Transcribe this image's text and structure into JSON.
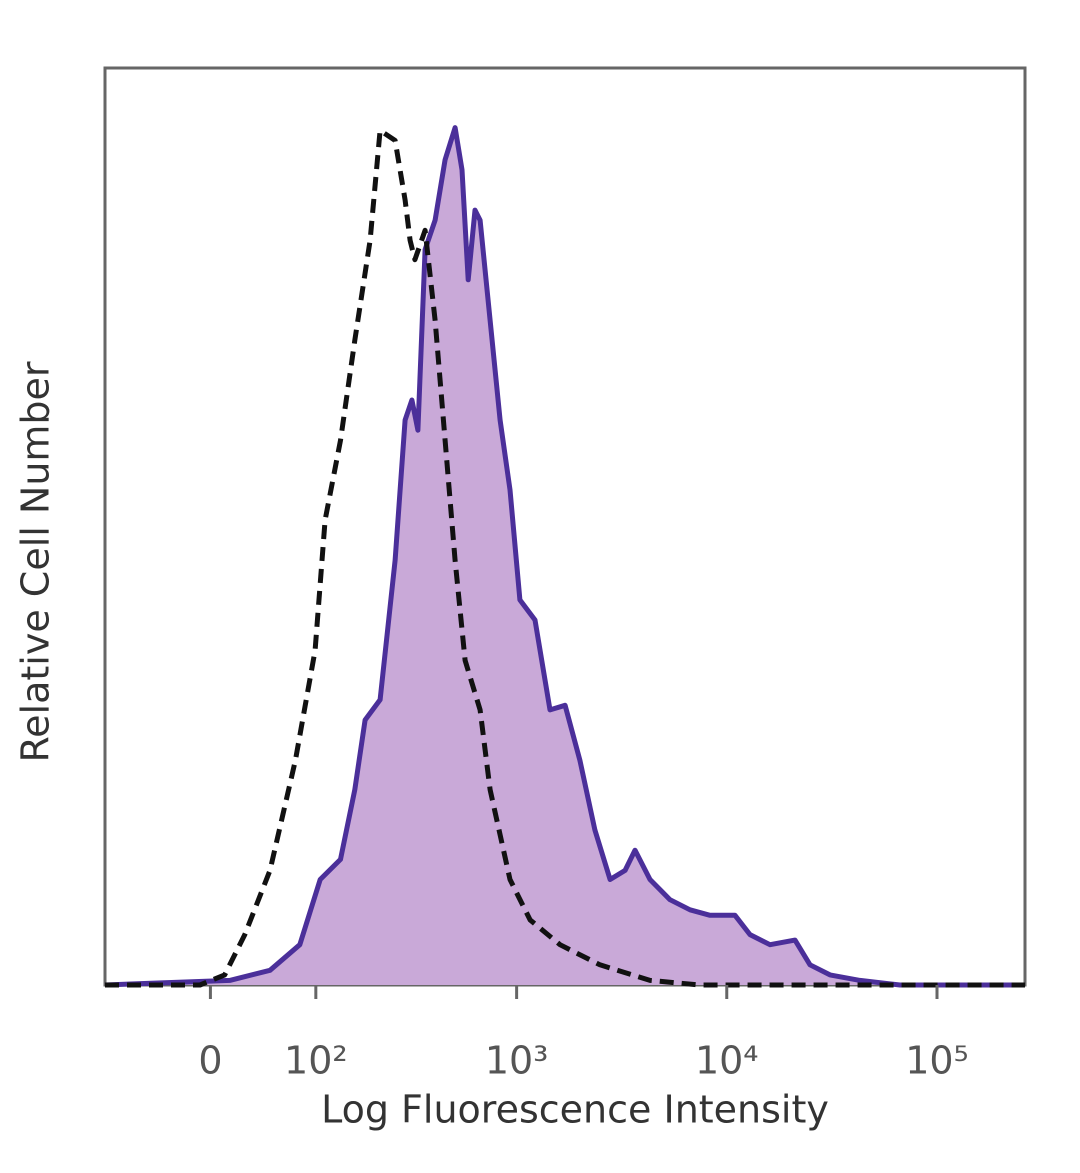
{
  "chart_data": {
    "type": "histogram-overlay",
    "xlabel": "Log Fluorescence Intensity",
    "ylabel": "Relative Cell Number",
    "xscale": "biexponential",
    "xlim": [
      -100,
      262144
    ],
    "ylim": [
      0,
      100
    ],
    "xticks": [
      0,
      {
        "value": 100,
        "label": "10²"
      },
      {
        "value": 1000,
        "label": "10³"
      },
      {
        "value": 10000,
        "label": "10⁴"
      },
      {
        "value": 100000,
        "label": "10⁵"
      }
    ],
    "series": [
      {
        "style": "filled",
        "color": "#4b2f9a",
        "fill": "#c9a9d8",
        "x": [
          -100,
          15,
          49,
          80,
          106,
          137,
          163,
          184,
          219,
          260,
          291,
          314,
          336,
          364,
          407,
          455,
          508,
          548,
          587,
          633,
          669,
          747,
          834,
          930,
          1037,
          1224,
          1442,
          1701,
          2002,
          2359,
          2786,
          3283,
          3661,
          4312,
          5369,
          6685,
          8323,
          10948,
          12894,
          16051,
          21105,
          24878,
          30961,
          43022,
          66640,
          262144
        ],
        "values": [
          0,
          0.5,
          1.6,
          4.4,
          11.5,
          13.7,
          21.3,
          28.9,
          31.1,
          46.3,
          61.6,
          63.8,
          60.5,
          80.2,
          83.4,
          90.0,
          93.5,
          88.9,
          76.9,
          84.5,
          83.4,
          72.5,
          61.6,
          54.0,
          42.0,
          39.8,
          30.0,
          30.5,
          24.5,
          16.9,
          11.5,
          12.5,
          14.7,
          11.5,
          9.3,
          8.2,
          7.6,
          7.6,
          5.5,
          4.4,
          4.9,
          2.2,
          1.1,
          0.5,
          0,
          0
        ]
      },
      {
        "style": "dashed",
        "color": "#111111",
        "x": [
          -100,
          -8,
          11,
          27,
          49,
          75,
          99,
          113,
          137,
          163,
          195,
          219,
          260,
          291,
          308,
          325,
          364,
          407,
          455,
          508,
          567,
          669,
          747,
          930,
          1159,
          1610,
          2492,
          4312,
          7462,
          262144
        ],
        "values": [
          0,
          0,
          1.1,
          5.5,
          12.5,
          24.5,
          36.5,
          50.7,
          59.4,
          70.3,
          81.2,
          93.2,
          92.1,
          85.6,
          81.2,
          79.1,
          82.3,
          72.5,
          59.4,
          46.3,
          35.4,
          30.0,
          21.3,
          11.5,
          7.1,
          4.4,
          2.2,
          0.5,
          0,
          0
        ]
      }
    ]
  }
}
